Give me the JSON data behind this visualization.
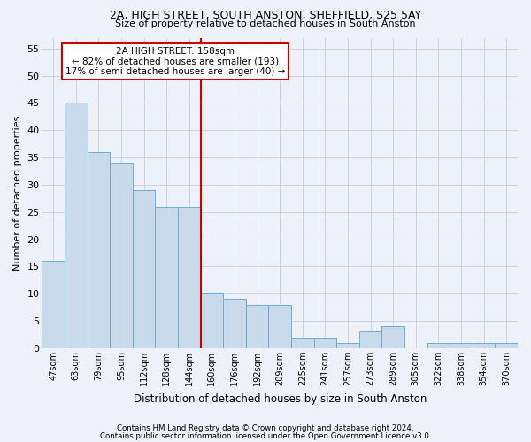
{
  "title1": "2A, HIGH STREET, SOUTH ANSTON, SHEFFIELD, S25 5AY",
  "title2": "Size of property relative to detached houses in South Anston",
  "xlabel": "Distribution of detached houses by size in South Anston",
  "ylabel": "Number of detached properties",
  "categories": [
    "47sqm",
    "63sqm",
    "79sqm",
    "95sqm",
    "112sqm",
    "128sqm",
    "144sqm",
    "160sqm",
    "176sqm",
    "192sqm",
    "209sqm",
    "225sqm",
    "241sqm",
    "257sqm",
    "273sqm",
    "289sqm",
    "305sqm",
    "322sqm",
    "338sqm",
    "354sqm",
    "370sqm"
  ],
  "values": [
    16,
    45,
    36,
    34,
    29,
    26,
    26,
    10,
    9,
    8,
    8,
    2,
    2,
    1,
    3,
    4,
    0,
    1,
    1,
    1,
    1
  ],
  "bar_color": "#c9daea",
  "bar_edge_color": "#6aaed6",
  "grid_color": "#c8d4e4",
  "background_color": "#eef2f8",
  "vline_color": "#cc0000",
  "annotation_text": "2A HIGH STREET: 158sqm\n← 82% of detached houses are smaller (193)\n17% of semi-detached houses are larger (40) →",
  "annotation_box_color": "#cc0000",
  "footer1": "Contains HM Land Registry data © Crown copyright and database right 2024.",
  "footer2": "Contains public sector information licensed under the Open Government Licence v3.0.",
  "ylim": [
    0,
    57
  ],
  "yticks": [
    0,
    5,
    10,
    15,
    20,
    25,
    30,
    35,
    40,
    45,
    50,
    55
  ]
}
